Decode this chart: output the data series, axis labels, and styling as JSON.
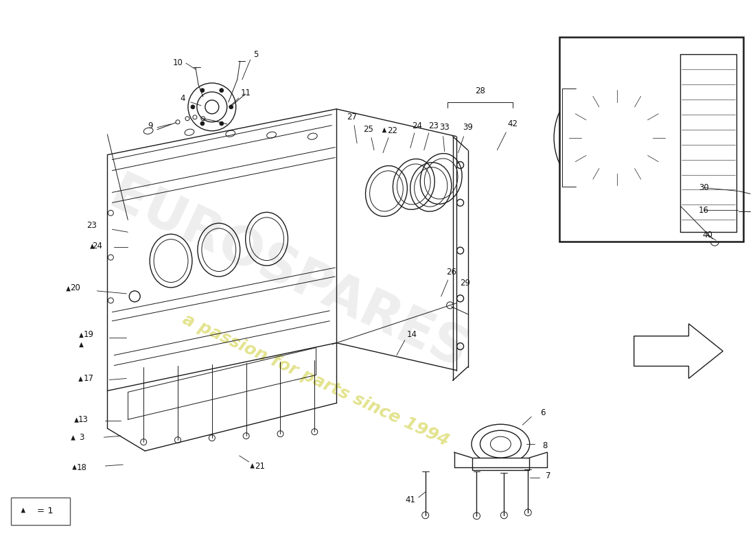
{
  "background_color": "#ffffff",
  "line_color": "#1a1a1a",
  "label_color": "#111111",
  "watermark_text": "a passion for parts since 1994",
  "watermark_color": "#c8c820",
  "watermark_alpha": 0.5,
  "logo_text": "EUROSPARES",
  "logo_color": "#c8c8c8",
  "logo_alpha": 0.3
}
